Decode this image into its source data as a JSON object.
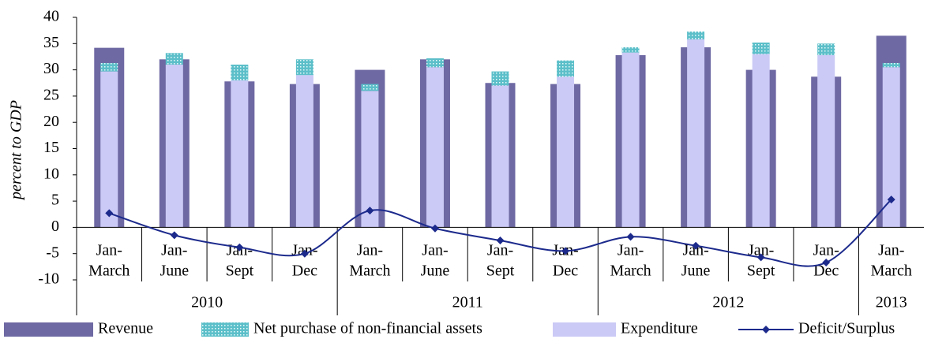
{
  "chart_data": {
    "type": "bar-line",
    "y_label": "percent to GDP",
    "groups": [
      {
        "label": "2010",
        "categories": [
          "Jan-March",
          "Jan-June",
          "Jan-Sept",
          "Jan-Dec"
        ]
      },
      {
        "label": "2011",
        "categories": [
          "Jan-March",
          "Jan-June",
          "Jan-Sept",
          "Jan-Dec"
        ]
      },
      {
        "label": "2012",
        "categories": [
          "Jan-March",
          "Jan-June",
          "Jan-Sept",
          "Jan-Dec"
        ]
      },
      {
        "label": "2013",
        "categories": [
          "Jan-March"
        ]
      }
    ],
    "series": [
      {
        "name": "Revenue",
        "kind": "bar",
        "color": "#6e69a3",
        "values": [
          34.2,
          32,
          27.8,
          27.3,
          30,
          32,
          27.5,
          27.3,
          32.8,
          34.3,
          30,
          28.7,
          36.5
        ]
      },
      {
        "name": "Net purchase of non-financial assets",
        "kind": "stacked",
        "color": "#5cbfc9",
        "values": [
          1.6,
          2.2,
          3.0,
          3.0,
          1.3,
          1.7,
          2.7,
          3.1,
          1.0,
          1.5,
          2.2,
          2.2,
          0.8
        ]
      },
      {
        "name": "Expenditure",
        "kind": "inner-bar",
        "color": "#cbcaf6",
        "values": [
          29.7,
          31,
          28,
          29,
          26,
          30.5,
          27,
          28.7,
          33.3,
          35.8,
          33,
          32.8,
          30.5
        ]
      },
      {
        "name": "Deficit/Surplus",
        "kind": "line",
        "color": "#1c2a8c",
        "values": [
          2.7,
          -1.5,
          -3.8,
          -5,
          3.2,
          -0.2,
          -2.5,
          -4.5,
          -1.8,
          -3.5,
          -5.7,
          -6.7,
          5.3
        ]
      }
    ],
    "ylim": [
      -10,
      40
    ],
    "yticks": [
      -10,
      -5,
      0,
      5,
      10,
      15,
      20,
      25,
      30,
      35,
      40
    ],
    "legend": "bottom"
  }
}
